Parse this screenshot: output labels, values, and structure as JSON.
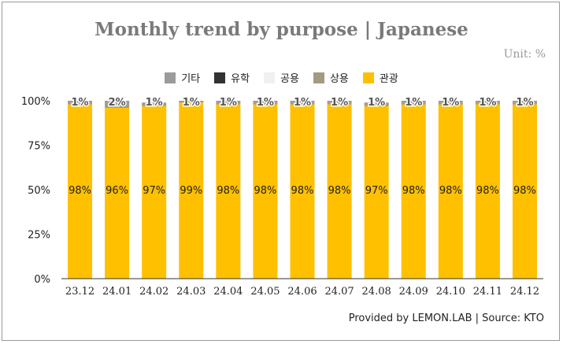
{
  "title": "Monthly trend by purpose | Japanese",
  "unit": "Unit: %",
  "credit": "Provided by LEMON.LAB | Source: KTO",
  "legend": [
    {
      "label": "기타",
      "color": "#9b9b9b"
    },
    {
      "label": "유학",
      "color": "#333333"
    },
    {
      "label": "공용",
      "color": "#f0f0f0"
    },
    {
      "label": "상용",
      "color": "#a39a82"
    },
    {
      "label": "관광",
      "color": "#ffc000"
    }
  ],
  "chart_data": {
    "type": "bar",
    "stacked": true,
    "categories": [
      "23.12",
      "24.01",
      "24.02",
      "24.03",
      "24.04",
      "24.05",
      "24.06",
      "24.07",
      "24.08",
      "24.09",
      "24.10",
      "24.11",
      "24.12"
    ],
    "series": [
      {
        "name": "관광",
        "color": "#ffc000",
        "values": [
          98,
          96,
          97,
          99,
          98,
          98,
          98,
          98,
          97,
          98,
          98,
          98,
          98
        ]
      },
      {
        "name": "상용",
        "color": "#a39a82",
        "values": [
          1,
          2,
          1,
          1,
          1,
          1,
          1,
          1,
          1,
          1,
          1,
          1,
          1
        ]
      },
      {
        "name": "공용",
        "color": "#f0f0f0",
        "values": [
          0,
          0,
          0,
          0,
          0,
          0,
          0,
          0,
          0,
          0,
          0,
          0,
          0
        ]
      },
      {
        "name": "유학",
        "color": "#333333",
        "values": [
          0,
          0,
          0,
          0,
          0,
          0,
          0,
          0,
          0,
          0,
          0,
          0,
          0
        ]
      },
      {
        "name": "기타",
        "color": "#9b9b9b",
        "values": [
          1,
          2,
          1,
          0,
          1,
          1,
          1,
          1,
          1,
          1,
          1,
          1,
          1
        ]
      }
    ],
    "data_labels": {
      "관광": [
        "98%",
        "96%",
        "97%",
        "99%",
        "98%",
        "98%",
        "98%",
        "98%",
        "97%",
        "98%",
        "98%",
        "98%",
        "98%"
      ],
      "상용": [
        "1%",
        "2%",
        "1%",
        "1%",
        "1%",
        "1%",
        "1%",
        "1%",
        "1%",
        "1%",
        "1%",
        "1%",
        "1%"
      ]
    },
    "y_ticks": [
      "0%",
      "25%",
      "50%",
      "75%",
      "100%"
    ],
    "ylim": [
      0,
      100
    ],
    "grid": false,
    "legend_position": "top-center"
  }
}
